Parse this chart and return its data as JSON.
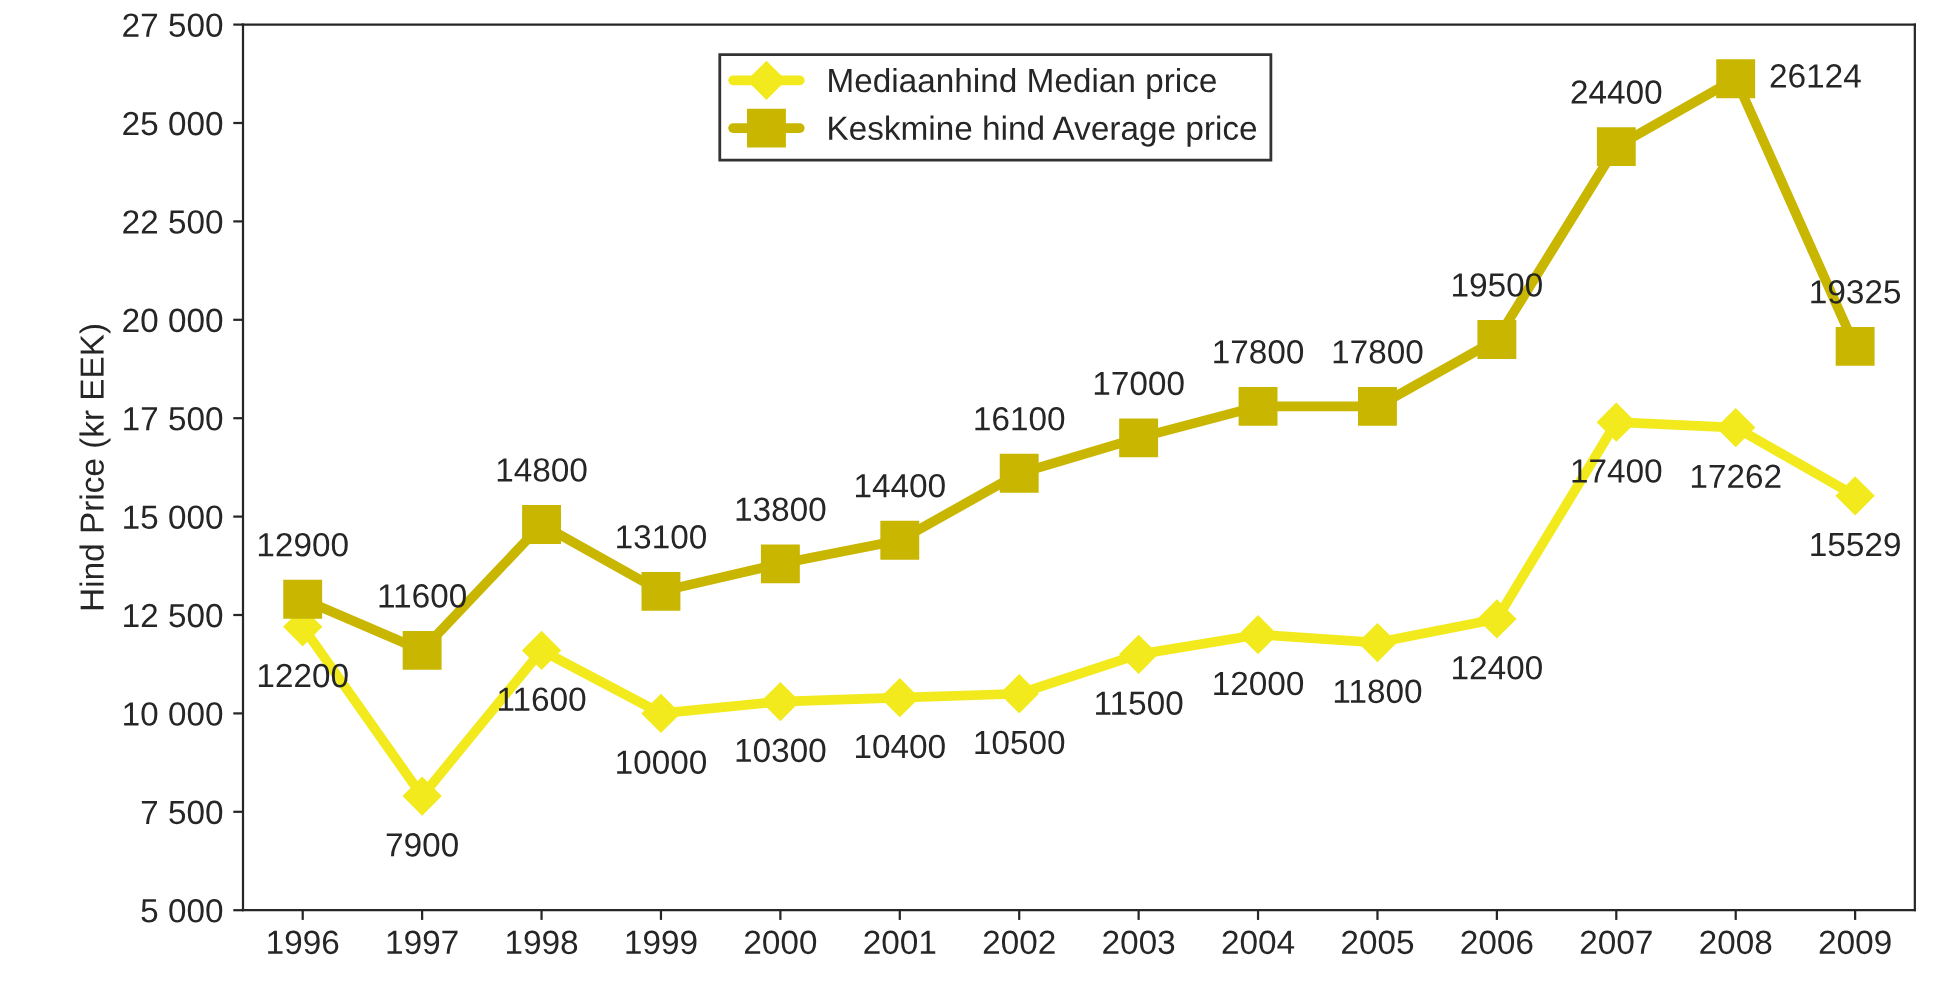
{
  "chart_data": {
    "type": "line",
    "ylabel": "Hind Price (kr EEK)",
    "categories": [
      "1996",
      "1997",
      "1998",
      "1999",
      "2000",
      "2001",
      "2002",
      "2003",
      "2004",
      "2005",
      "2006",
      "2007",
      "2008",
      "2009"
    ],
    "series": [
      {
        "name": "Mediaanhind Median price",
        "color": "#f2ea1c",
        "marker": "diamond",
        "values": [
          12200,
          7900,
          11600,
          10000,
          10300,
          10400,
          10500,
          11500,
          12000,
          11800,
          12400,
          17400,
          17262,
          15529
        ]
      },
      {
        "name": "Keskmine hind Average price",
        "color": "#c9b600",
        "marker": "square",
        "values": [
          12900,
          11600,
          14800,
          13100,
          13800,
          14400,
          16100,
          17000,
          17800,
          17800,
          19500,
          24400,
          26124,
          19325
        ]
      }
    ],
    "ylim": [
      5000,
      27500
    ],
    "yticks": [
      {
        "value": 5000,
        "label": "5 000"
      },
      {
        "value": 7500,
        "label": "7 500"
      },
      {
        "value": 10000,
        "label": "10 000"
      },
      {
        "value": 12500,
        "label": "12 500"
      },
      {
        "value": 15000,
        "label": "15 000"
      },
      {
        "value": 17500,
        "label": "17 500"
      },
      {
        "value": 20000,
        "label": "20 000"
      },
      {
        "value": 22500,
        "label": "22 500"
      },
      {
        "value": 25000,
        "label": "25 000"
      },
      {
        "value": 27500,
        "label": "27 500"
      }
    ],
    "grid": false,
    "legend": "top",
    "line_style": "solid",
    "data_labels": true
  }
}
